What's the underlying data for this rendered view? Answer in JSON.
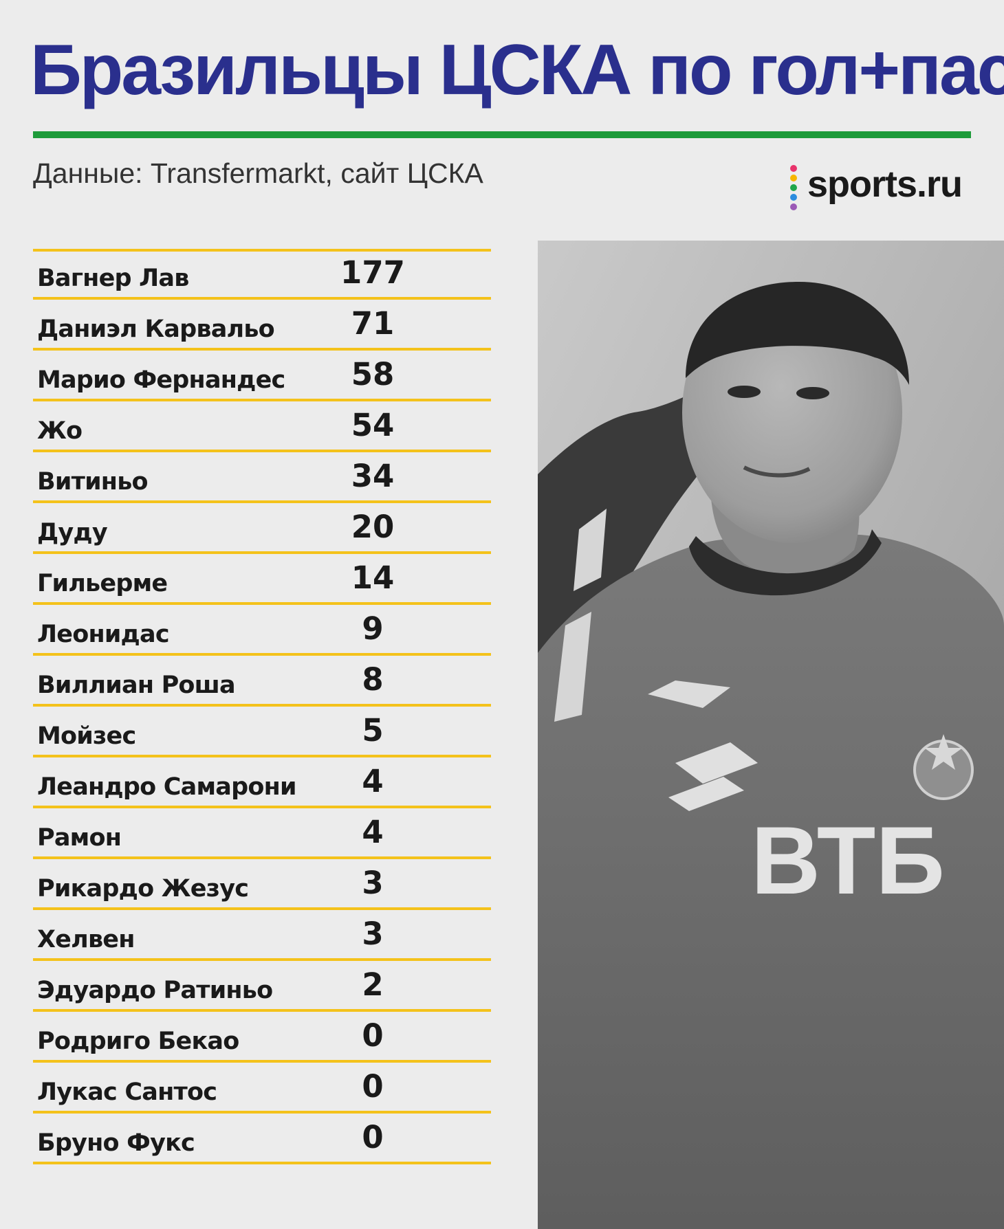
{
  "title": "Бразильцы ЦСКА по гол+пас",
  "subtitle": "Данные: Transfermarkt, сайт ЦСКА",
  "brand": {
    "text": "sports.ru",
    "dot_colors": [
      "#e8336b",
      "#f7b500",
      "#1fa64a",
      "#2b8cde",
      "#9b59b6"
    ]
  },
  "colors": {
    "title": "#2a2f8d",
    "title_rule": "#1e9b3a",
    "row_rule": "#f4c21b",
    "text": "#1a1a1a",
    "background": "#ececec"
  },
  "photo": {
    "shirt_sponsor": "ВТБ",
    "style": "grayscale"
  },
  "chart_data": {
    "type": "table",
    "title": "Бразильцы ЦСКА по гол+пас",
    "subtitle": "Данные: Transfermarkt, сайт ЦСКА",
    "categories": [
      "Вагнер Лав",
      "Даниэл Карвальо",
      "Марио Фернандес",
      "Жо",
      "Витиньо",
      "Дуду",
      "Гильерме",
      "Леонидас",
      "Виллиан Роша",
      "Мойзес",
      "Леандро Самарони",
      "Рамон",
      "Рикардо Жезус",
      "Хелвен",
      "Эдуардо Ратиньо",
      "Родриго Бекао",
      "Лукас Сантос",
      "Бруно Фукс"
    ],
    "values": [
      177,
      71,
      58,
      54,
      34,
      20,
      14,
      9,
      8,
      5,
      4,
      4,
      3,
      3,
      2,
      0,
      0,
      0
    ]
  }
}
